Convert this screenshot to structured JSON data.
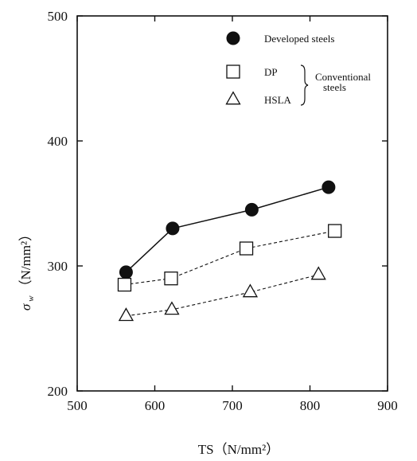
{
  "chart_data": {
    "type": "line",
    "xlabel": "TS（N/mm²）",
    "ylabel_symbol": "σ",
    "ylabel_subscript": "w",
    "ylabel_unit": "（N/mm²）",
    "xlim": [
      500,
      900
    ],
    "ylim": [
      200,
      500
    ],
    "xticks": [
      500,
      600,
      700,
      800,
      900
    ],
    "yticks": [
      200,
      300,
      400,
      500
    ],
    "grid": false,
    "legend_position": "top-right",
    "series": [
      {
        "name": "Developed steels",
        "marker": "filled-circle",
        "line": "solid",
        "x": [
          563,
          623,
          725,
          824
        ],
        "y": [
          295,
          330,
          345,
          363
        ]
      },
      {
        "name": "DP",
        "marker": "open-square",
        "line": "dashed",
        "x": [
          561,
          621,
          718,
          832
        ],
        "y": [
          285,
          290,
          314,
          328
        ]
      },
      {
        "name": "HSLA",
        "marker": "open-triangle",
        "line": "dashed",
        "x": [
          563,
          622,
          723,
          811
        ],
        "y": [
          260,
          265,
          279,
          293
        ]
      }
    ],
    "legend_group_label": [
      "Conventional",
      "steels"
    ]
  }
}
